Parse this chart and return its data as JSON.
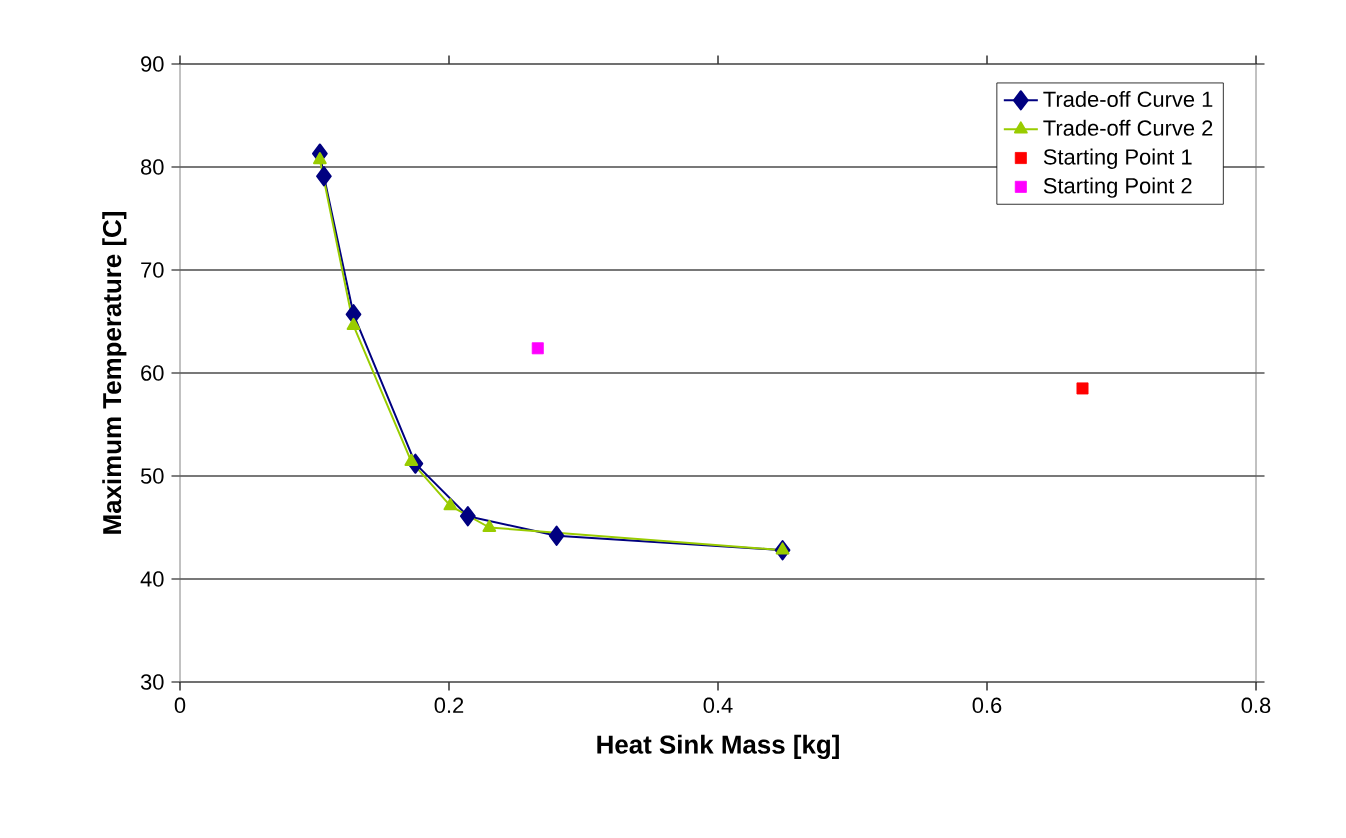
{
  "chart_data": {
    "type": "line",
    "xlabel": "Heat Sink Mass [kg]",
    "ylabel": "Maximum Temperature [C]",
    "xlim": [
      0,
      0.8
    ],
    "ylim": [
      30,
      90
    ],
    "xticks": [
      0,
      0.2,
      0.4,
      0.6,
      0.8
    ],
    "yticks": [
      30,
      40,
      50,
      60,
      70,
      80,
      90
    ],
    "grid": "y",
    "legend": "top right",
    "series": [
      {
        "name": "Trade-off Curve 1",
        "color": "#000080",
        "marker": "diamond",
        "x": [
          0.104,
          0.107,
          0.129,
          0.175,
          0.214,
          0.28,
          0.448
        ],
        "values": [
          81.3,
          79.1,
          65.7,
          51.2,
          46.1,
          44.2,
          42.8
        ]
      },
      {
        "name": "Trade-off Curve 2",
        "color": "#99cc00",
        "marker": "triangle",
        "x": [
          0.104,
          0.129,
          0.172,
          0.201,
          0.23,
          0.448
        ],
        "values": [
          80.7,
          64.6,
          51.4,
          47.1,
          45.0,
          42.8
        ]
      },
      {
        "name": "Starting Point 1",
        "type": "scatter",
        "color": "#ff0000",
        "marker": "square",
        "x": [
          0.671
        ],
        "values": [
          58.5
        ]
      },
      {
        "name": "Starting Point 2",
        "type": "scatter",
        "color": "#ff00ff",
        "marker": "square",
        "x": [
          0.266
        ],
        "values": [
          62.4
        ]
      }
    ]
  }
}
